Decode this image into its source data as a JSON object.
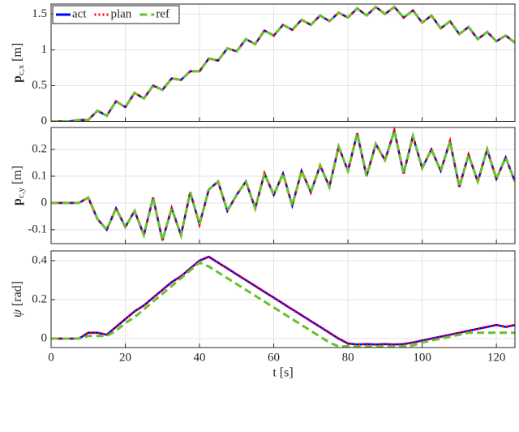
{
  "chart_data": [
    {
      "type": "line",
      "ylabel": {
        "main": "p",
        "sub": "c,x",
        "unit": "[m]"
      },
      "x": [
        0,
        2.5,
        5,
        7.5,
        10,
        12.5,
        15,
        17.5,
        20,
        22.5,
        25,
        27.5,
        30,
        32.5,
        35,
        37.5,
        40,
        42.5,
        45,
        47.5,
        50,
        52.5,
        55,
        57.5,
        60,
        62.5,
        65,
        67.5,
        70,
        72.5,
        75,
        77.5,
        80,
        82.5,
        85,
        87.5,
        90,
        92.5,
        95,
        97.5,
        100,
        102.5,
        105,
        107.5,
        110,
        112.5,
        115,
        117.5,
        120,
        122.5,
        125
      ],
      "xlim": [
        0,
        125
      ],
      "xticks": [
        0,
        20,
        40,
        60,
        80,
        100,
        120
      ],
      "ylim": [
        0,
        1.64
      ],
      "yticks": [
        0,
        0.5,
        1,
        1.5
      ],
      "grid": true,
      "legend": "upper left",
      "series": [
        {
          "name": "act",
          "color": "#0000ff",
          "style": "solid",
          "values": [
            0,
            0,
            0,
            0.02,
            0.02,
            0.15,
            0.08,
            0.28,
            0.2,
            0.4,
            0.32,
            0.5,
            0.44,
            0.6,
            0.58,
            0.7,
            0.7,
            0.88,
            0.85,
            1.02,
            0.98,
            1.15,
            1.08,
            1.27,
            1.2,
            1.35,
            1.28,
            1.42,
            1.35,
            1.48,
            1.4,
            1.52,
            1.45,
            1.58,
            1.48,
            1.6,
            1.5,
            1.6,
            1.45,
            1.55,
            1.38,
            1.48,
            1.3,
            1.4,
            1.22,
            1.32,
            1.15,
            1.25,
            1.12,
            1.2,
            1.1
          ]
        },
        {
          "name": "plan",
          "color": "#ff0000",
          "style": "dotted",
          "values": [
            0,
            0,
            0,
            0.02,
            0.02,
            0.15,
            0.08,
            0.28,
            0.2,
            0.4,
            0.32,
            0.5,
            0.44,
            0.6,
            0.58,
            0.7,
            0.7,
            0.88,
            0.85,
            1.02,
            0.98,
            1.15,
            1.08,
            1.27,
            1.2,
            1.35,
            1.28,
            1.42,
            1.35,
            1.48,
            1.4,
            1.52,
            1.45,
            1.58,
            1.48,
            1.6,
            1.5,
            1.6,
            1.45,
            1.55,
            1.38,
            1.48,
            1.3,
            1.4,
            1.22,
            1.32,
            1.15,
            1.25,
            1.12,
            1.2,
            1.1
          ]
        },
        {
          "name": "ref",
          "color": "#66c22e",
          "style": "dashed",
          "values": [
            0,
            0,
            0,
            0.02,
            0.02,
            0.15,
            0.08,
            0.28,
            0.2,
            0.4,
            0.32,
            0.5,
            0.44,
            0.6,
            0.58,
            0.7,
            0.7,
            0.88,
            0.85,
            1.02,
            0.98,
            1.15,
            1.08,
            1.27,
            1.2,
            1.35,
            1.28,
            1.42,
            1.35,
            1.48,
            1.4,
            1.52,
            1.45,
            1.58,
            1.48,
            1.6,
            1.5,
            1.6,
            1.45,
            1.55,
            1.38,
            1.48,
            1.3,
            1.4,
            1.22,
            1.32,
            1.15,
            1.25,
            1.12,
            1.2,
            1.1
          ]
        }
      ]
    },
    {
      "type": "line",
      "ylabel": {
        "main": "p",
        "sub": "c,y",
        "unit": "[m]"
      },
      "x": [
        0,
        2.5,
        5,
        7.5,
        10,
        12.5,
        15,
        17.5,
        20,
        22.5,
        25,
        27.5,
        30,
        32.5,
        35,
        37.5,
        40,
        42.5,
        45,
        47.5,
        50,
        52.5,
        55,
        57.5,
        60,
        62.5,
        65,
        67.5,
        70,
        72.5,
        75,
        77.5,
        80,
        82.5,
        85,
        87.5,
        90,
        92.5,
        95,
        97.5,
        100,
        102.5,
        105,
        107.5,
        110,
        112.5,
        115,
        117.5,
        120,
        122.5,
        125
      ],
      "xlim": [
        0,
        125
      ],
      "xticks": [
        0,
        20,
        40,
        60,
        80,
        100,
        120
      ],
      "ylim": [
        -0.152,
        0.282
      ],
      "yticks": [
        -0.1,
        0,
        0.1,
        0.2
      ],
      "grid": true,
      "series": [
        {
          "color": "#0000ff",
          "style": "solid",
          "values": [
            0,
            0,
            0,
            0,
            0.02,
            -0.06,
            -0.1,
            -0.02,
            -0.09,
            -0.03,
            -0.12,
            0.02,
            -0.14,
            -0.02,
            -0.12,
            0.04,
            -0.08,
            0.05,
            0.08,
            -0.03,
            0.03,
            0.08,
            -0.02,
            0.11,
            0.03,
            0.11,
            -0.01,
            0.12,
            0.04,
            0.14,
            0.06,
            0.21,
            0.12,
            0.26,
            0.1,
            0.22,
            0.16,
            0.27,
            0.11,
            0.25,
            0.13,
            0.2,
            0.12,
            0.23,
            0.06,
            0.18,
            0.08,
            0.2,
            0.09,
            0.17,
            0.08
          ]
        },
        {
          "color": "#ff0000",
          "style": "dotted",
          "values": [
            0,
            0,
            0,
            0,
            0.02,
            -0.06,
            -0.1,
            -0.02,
            -0.09,
            -0.03,
            -0.12,
            0.02,
            -0.14,
            -0.02,
            -0.12,
            0.04,
            -0.08,
            0.05,
            0.08,
            -0.03,
            0.03,
            0.08,
            -0.02,
            0.11,
            0.03,
            0.11,
            -0.01,
            0.12,
            0.04,
            0.14,
            0.06,
            0.21,
            0.12,
            0.26,
            0.1,
            0.22,
            0.16,
            0.27,
            0.11,
            0.25,
            0.13,
            0.2,
            0.12,
            0.23,
            0.06,
            0.18,
            0.08,
            0.2,
            0.09,
            0.17,
            0.08
          ]
        },
        {
          "color": "#66c22e",
          "style": "dashed",
          "values": [
            0,
            0,
            0,
            0,
            0.02,
            -0.06,
            -0.1,
            -0.02,
            -0.09,
            -0.03,
            -0.12,
            0.02,
            -0.14,
            -0.02,
            -0.12,
            0.04,
            -0.08,
            0.05,
            0.08,
            -0.03,
            0.03,
            0.08,
            -0.02,
            0.11,
            0.03,
            0.11,
            -0.01,
            0.12,
            0.04,
            0.14,
            0.06,
            0.21,
            0.12,
            0.26,
            0.1,
            0.22,
            0.16,
            0.27,
            0.11,
            0.25,
            0.13,
            0.2,
            0.12,
            0.23,
            0.06,
            0.18,
            0.08,
            0.2,
            0.09,
            0.17,
            0.08
          ]
        }
      ]
    },
    {
      "type": "line",
      "ylabel": {
        "main": "ψ",
        "unit": "[rad]"
      },
      "xlabel": "t [s]",
      "x": [
        0,
        2.5,
        5,
        7.5,
        10,
        12.5,
        15,
        17.5,
        20,
        22.5,
        25,
        27.5,
        30,
        32.5,
        35,
        37.5,
        40,
        42.5,
        45,
        47.5,
        50,
        52.5,
        55,
        57.5,
        60,
        62.5,
        65,
        67.5,
        70,
        72.5,
        75,
        77.5,
        80,
        82.5,
        85,
        87.5,
        90,
        92.5,
        95,
        97.5,
        100,
        102.5,
        105,
        107.5,
        110,
        112.5,
        115,
        117.5,
        120,
        122.5,
        125
      ],
      "xlim": [
        0,
        125
      ],
      "xticks": [
        0,
        20,
        40,
        60,
        80,
        100,
        120
      ],
      "ylim": [
        -0.046,
        0.45
      ],
      "yticks": [
        0,
        0.2,
        0.4
      ],
      "grid": true,
      "series": [
        {
          "color": "#0000ff",
          "style": "solid",
          "values": [
            0,
            0,
            0,
            0,
            0.03,
            0.03,
            0.02,
            0.06,
            0.1,
            0.14,
            0.17,
            0.21,
            0.25,
            0.29,
            0.32,
            0.36,
            0.4,
            0.42,
            0.39,
            0.36,
            0.33,
            0.3,
            0.27,
            0.24,
            0.21,
            0.18,
            0.15,
            0.12,
            0.09,
            0.06,
            0.03,
            0,
            -0.025,
            -0.03,
            -0.028,
            -0.03,
            -0.028,
            -0.03,
            -0.028,
            -0.02,
            -0.01,
            0,
            0.01,
            0.02,
            0.03,
            0.04,
            0.05,
            0.06,
            0.07,
            0.06,
            0.07
          ]
        },
        {
          "color": "#ff0000",
          "style": "dotted",
          "values": [
            0,
            0,
            0,
            0,
            0.03,
            0.03,
            0.02,
            0.06,
            0.1,
            0.14,
            0.17,
            0.21,
            0.25,
            0.29,
            0.32,
            0.36,
            0.4,
            0.42,
            0.39,
            0.36,
            0.33,
            0.3,
            0.27,
            0.24,
            0.21,
            0.18,
            0.15,
            0.12,
            0.09,
            0.06,
            0.03,
            0,
            -0.025,
            -0.03,
            -0.028,
            -0.03,
            -0.028,
            -0.03,
            -0.028,
            -0.02,
            -0.01,
            0,
            0.01,
            0.02,
            0.03,
            0.04,
            0.05,
            0.06,
            0.07,
            0.06,
            0.07
          ]
        },
        {
          "color": "#66c22e",
          "style": "dashed",
          "values": [
            0,
            0,
            0,
            0,
            0.013,
            0.013,
            0.013,
            0.04,
            0.08,
            0.11,
            0.15,
            0.19,
            0.23,
            0.27,
            0.31,
            0.35,
            0.39,
            0.37,
            0.34,
            0.31,
            0.28,
            0.25,
            0.22,
            0.19,
            0.16,
            0.13,
            0.1,
            0.07,
            0.04,
            0.01,
            -0.02,
            -0.04,
            -0.04,
            -0.04,
            -0.04,
            -0.04,
            -0.04,
            -0.04,
            -0.04,
            -0.035,
            -0.02,
            -0.01,
            0,
            0.01,
            0.02,
            0.03,
            0.03,
            0.03,
            0.03,
            0.03,
            0.03
          ]
        }
      ]
    }
  ]
}
